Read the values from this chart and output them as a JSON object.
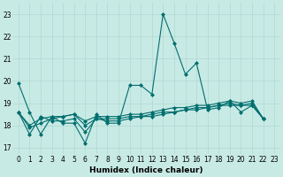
{
  "bg_color": "#c8eae5",
  "grid_color": "#b0d8d2",
  "line_color": "#006e6e",
  "xlabel": "Humidex (Indice chaleur)",
  "ylabel_ticks": [
    17,
    18,
    19,
    20,
    21,
    22,
    23
  ],
  "xlim": [
    -0.5,
    23.5
  ],
  "ylim": [
    16.7,
    23.5
  ],
  "series": [
    [
      19.9,
      18.6,
      17.6,
      18.4,
      18.1,
      18.1,
      17.2,
      18.5,
      18.1,
      18.1,
      19.8,
      19.8,
      19.4,
      23.0,
      21.7,
      20.3,
      20.8,
      18.7,
      18.8,
      19.1,
      18.6,
      18.9,
      18.3
    ],
    [
      18.6,
      17.6,
      18.4,
      18.2,
      18.2,
      18.3,
      17.7,
      18.3,
      18.2,
      18.2,
      18.3,
      18.4,
      18.4,
      18.5,
      18.6,
      18.7,
      18.7,
      18.8,
      18.9,
      18.9,
      18.9,
      18.9,
      18.3
    ],
    [
      18.6,
      17.9,
      18.1,
      18.3,
      18.4,
      18.5,
      18.0,
      18.3,
      18.3,
      18.3,
      18.4,
      18.4,
      18.5,
      18.6,
      18.6,
      18.7,
      18.8,
      18.8,
      18.9,
      19.0,
      18.9,
      19.0,
      18.3
    ],
    [
      18.6,
      18.0,
      18.3,
      18.4,
      18.4,
      18.5,
      18.2,
      18.4,
      18.4,
      18.4,
      18.5,
      18.5,
      18.6,
      18.7,
      18.8,
      18.8,
      18.9,
      18.9,
      19.0,
      19.1,
      19.0,
      19.1,
      18.3
    ]
  ],
  "xticks": [
    0,
    1,
    2,
    3,
    4,
    5,
    6,
    7,
    8,
    9,
    10,
    11,
    12,
    13,
    14,
    15,
    16,
    17,
    18,
    19,
    20,
    21,
    22,
    23
  ],
  "xtick_labels": [
    "0",
    "1",
    "2",
    "3",
    "4",
    "5",
    "6",
    "7",
    "8",
    "9",
    "10",
    "11",
    "12",
    "13",
    "14",
    "15",
    "16",
    "17",
    "18",
    "19",
    "20",
    "21",
    "22",
    "23"
  ],
  "marker": "D",
  "markersize": 2,
  "linewidth": 0.8,
  "axis_fontsize": 6.5,
  "tick_fontsize": 5.5
}
